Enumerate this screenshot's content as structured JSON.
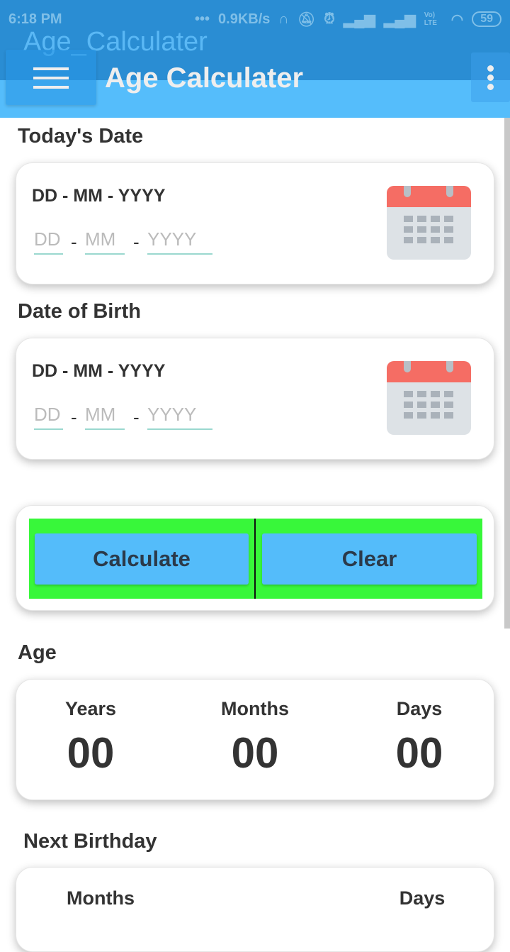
{
  "status": {
    "time": "6:18 PM",
    "dots": "•••",
    "speed": "0.9KB/s",
    "battery": "59",
    "network": "Vo) LTE"
  },
  "app": {
    "window_title": "Age_Calculater",
    "title": "Age Calculater"
  },
  "today": {
    "label": "Today's Date",
    "format": "DD - MM - YYYY",
    "dd": "DD",
    "mm": "MM",
    "yyyy": "YYYY",
    "sep": "-"
  },
  "birth": {
    "label": "Date of Birth",
    "format": "DD - MM - YYYY",
    "dd": "DD",
    "mm": "MM",
    "yyyy": "YYYY",
    "sep": "-"
  },
  "buttons": {
    "calculate": "Calculate",
    "clear": "Clear"
  },
  "age": {
    "label": "Age",
    "years_label": "Years",
    "years": "00",
    "months_label": "Months",
    "months": "00",
    "days_label": "Days",
    "days": "00"
  },
  "next": {
    "label": "Next Birthday",
    "months_label": "Months",
    "days_label": "Days"
  },
  "colors": {
    "appbar": "#2a8dd3",
    "appbar_light": "#55bdfb",
    "button": "#54bcfa",
    "button_bg": "#38f73a",
    "calendar_top": "#f56d64"
  }
}
